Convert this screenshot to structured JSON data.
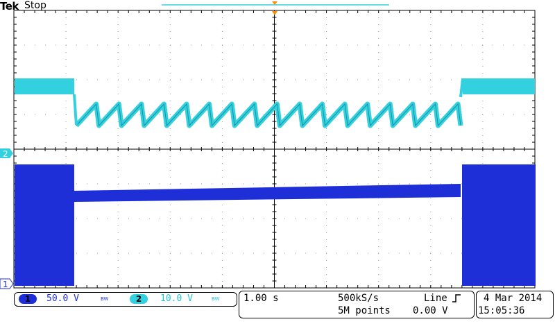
{
  "header": {
    "brand": "Tek",
    "status": "Stop"
  },
  "colors": {
    "ch1": "#1f2fd8",
    "ch2": "#33d1e0",
    "trigger": "#ff8c00",
    "grid": "#000000"
  },
  "grid": {
    "h_divisions": 10,
    "v_divisions": 8
  },
  "markers": {
    "ch1": "1",
    "ch2": "2"
  },
  "channels": [
    {
      "id": "1",
      "scale": "50.0 V",
      "bw": "BW"
    },
    {
      "id": "2",
      "scale": "10.0 V",
      "bw": "BW"
    }
  ],
  "horizontal": {
    "timebase": "1.00 s",
    "sample_rate": "500kS/s",
    "record_length": "5M points"
  },
  "trigger": {
    "source": "Line",
    "slope_icon": "rising-edge-icon",
    "level": "0.00 V"
  },
  "datetime": {
    "date": "4 Mar 2014",
    "time": "15:05:36"
  },
  "icons": {
    "trigger_position": "trigger-position-marker-icon"
  }
}
